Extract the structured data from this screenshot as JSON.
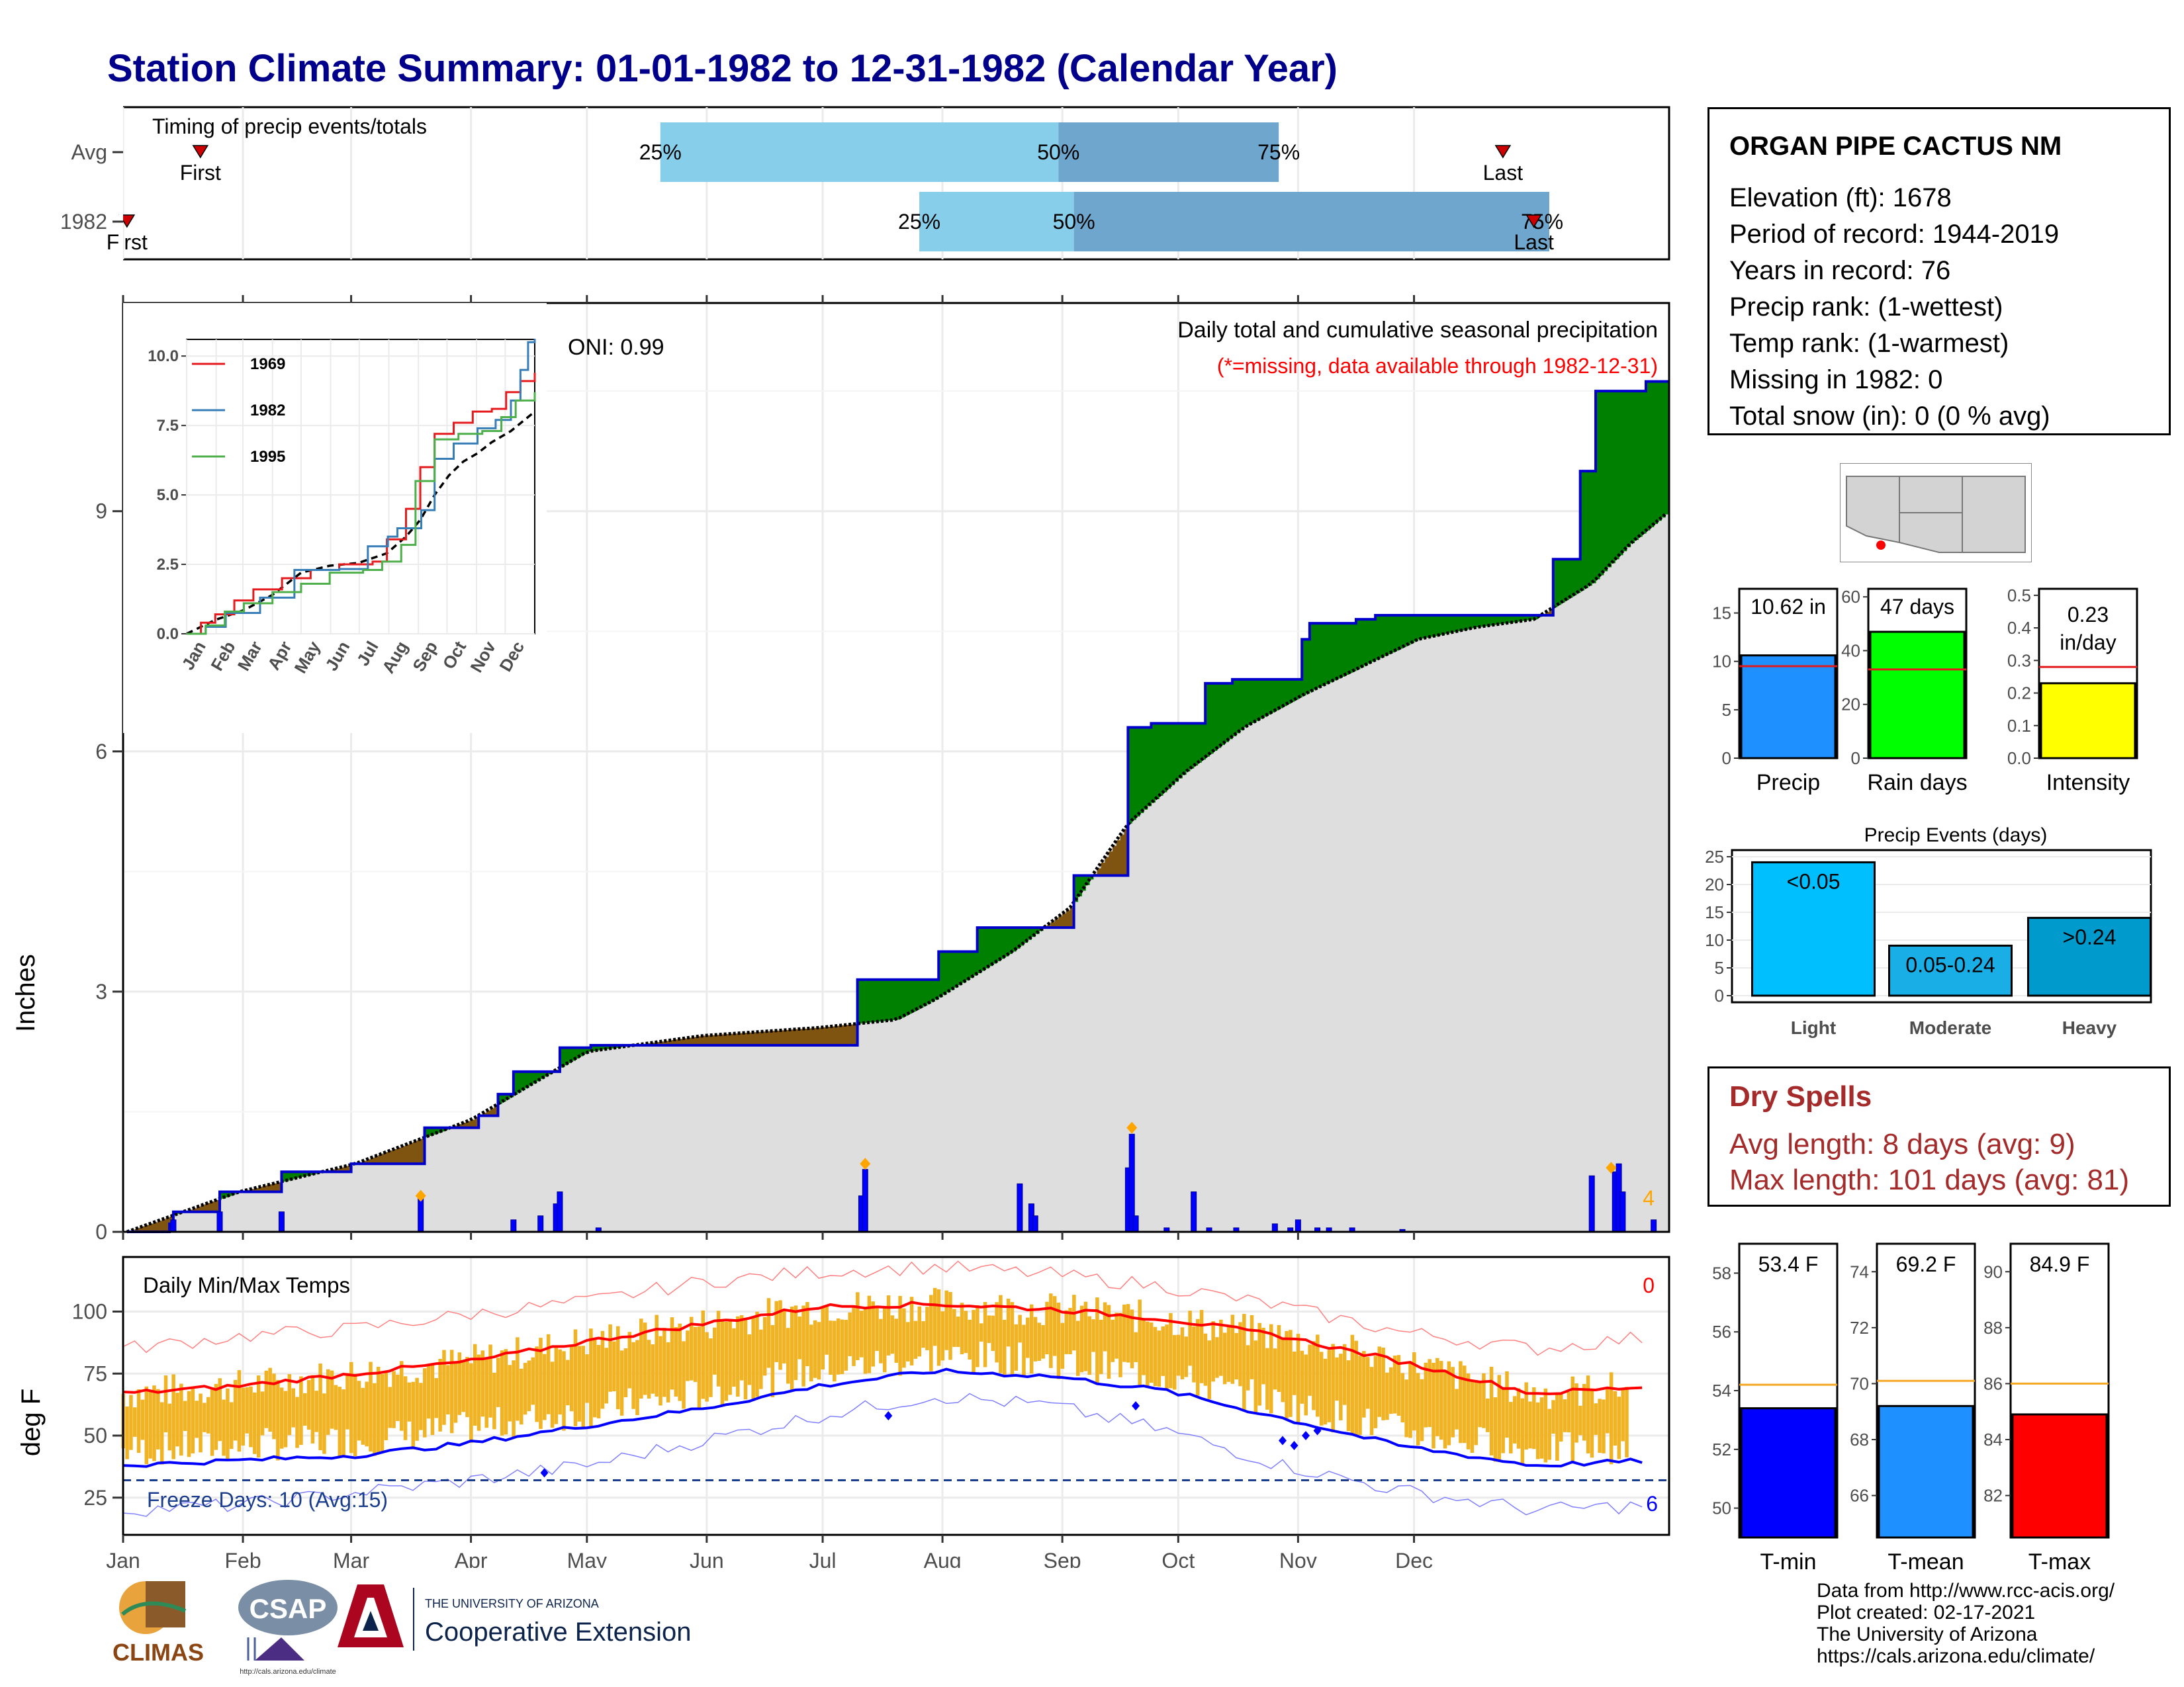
{
  "title": "Station Climate Summary: 01-01-1982 to 12-31-1982 (Calendar Year)",
  "timing": {
    "label": "Timing of precip events/totals",
    "rows": [
      {
        "name": "Avg",
        "first_day": 20,
        "last_day": 357,
        "q25": 139,
        "q50": 242,
        "q75": 299,
        "first_label": "First",
        "last_label": "Last"
      },
      {
        "name": "1982",
        "first_day": 1,
        "last_day": 365,
        "q25": 206,
        "q50": 246,
        "q75": 369,
        "first_label": "First",
        "last_label": "Last"
      }
    ],
    "pct_labels": [
      "25%",
      "50%",
      "75%"
    ]
  },
  "precip": {
    "ylabel": "Inches",
    "oni": "ONI: 0.99",
    "caption": "Daily total and cumulative seasonal precipitation",
    "note": "(*=missing, data available through 1982-12-31)",
    "count_label": "4",
    "yticks": [
      "0",
      "3",
      "6",
      "9"
    ],
    "ylim": [
      0,
      11.6
    ],
    "cumulative_1982": [
      [
        1,
        0
      ],
      [
        12,
        0.1
      ],
      [
        13,
        0.25
      ],
      [
        24,
        0.25
      ],
      [
        25,
        0.5
      ],
      [
        40,
        0.5
      ],
      [
        41,
        0.75
      ],
      [
        58,
        0.75
      ],
      [
        59,
        0.85
      ],
      [
        77,
        0.85
      ],
      [
        78,
        1.3
      ],
      [
        91,
        1.3
      ],
      [
        92,
        1.45
      ],
      [
        96,
        1.45
      ],
      [
        97,
        1.72
      ],
      [
        100,
        1.72
      ],
      [
        101,
        2.0
      ],
      [
        112,
        2.0
      ],
      [
        113,
        2.3
      ],
      [
        120,
        2.3
      ],
      [
        121,
        2.33
      ],
      [
        165,
        2.33
      ],
      [
        166,
        2.33
      ],
      [
        189,
        2.33
      ],
      [
        190,
        3.15
      ],
      [
        210,
        3.15
      ],
      [
        211,
        3.5
      ],
      [
        220,
        3.5
      ],
      [
        221,
        3.8
      ],
      [
        245,
        3.8
      ],
      [
        246,
        4.45
      ],
      [
        259,
        4.45
      ],
      [
        260,
        6.3
      ],
      [
        265,
        6.3
      ],
      [
        266,
        6.35
      ],
      [
        279,
        6.35
      ],
      [
        280,
        6.85
      ],
      [
        286,
        6.85
      ],
      [
        287,
        6.9
      ],
      [
        304,
        6.9
      ],
      [
        305,
        7.4
      ],
      [
        306,
        7.4
      ],
      [
        307,
        7.6
      ],
      [
        318,
        7.6
      ],
      [
        319,
        7.65
      ],
      [
        323,
        7.65
      ],
      [
        324,
        7.7
      ],
      [
        365,
        7.7
      ],
      [
        366,
        7.7
      ],
      [
        369,
        7.7
      ],
      [
        370,
        8.4
      ],
      [
        376,
        8.4
      ],
      [
        377,
        9.5
      ],
      [
        380,
        9.5
      ],
      [
        381,
        10.5
      ],
      [
        393,
        10.5
      ],
      [
        394,
        10.62
      ],
      [
        400,
        10.62
      ]
    ],
    "cumulative_avg": [
      [
        1,
        0
      ],
      [
        30,
        0.5
      ],
      [
        60,
        0.85
      ],
      [
        90,
        1.4
      ],
      [
        120,
        2.25
      ],
      [
        150,
        2.45
      ],
      [
        180,
        2.55
      ],
      [
        200,
        2.65
      ],
      [
        210,
        2.9
      ],
      [
        230,
        3.5
      ],
      [
        245,
        4.05
      ],
      [
        260,
        5.1
      ],
      [
        275,
        5.75
      ],
      [
        290,
        6.3
      ],
      [
        305,
        6.7
      ],
      [
        320,
        7.05
      ],
      [
        335,
        7.4
      ],
      [
        350,
        7.55
      ],
      [
        365,
        7.65
      ],
      [
        380,
        8.1
      ],
      [
        390,
        8.6
      ],
      [
        400,
        9.0
      ]
    ],
    "daily_bars": [
      [
        13,
        0.15
      ],
      [
        25,
        0.25
      ],
      [
        41,
        0.25
      ],
      [
        77,
        0.45
      ],
      [
        101,
        0.15
      ],
      [
        108,
        0.2
      ],
      [
        112,
        0.35
      ],
      [
        113,
        0.5
      ],
      [
        123,
        0.05
      ],
      [
        191,
        0.45
      ],
      [
        192,
        0.78
      ],
      [
        232,
        0.6
      ],
      [
        235,
        0.35
      ],
      [
        236,
        0.2
      ],
      [
        260,
        0.8
      ],
      [
        261,
        1.22
      ],
      [
        262,
        0.2
      ],
      [
        270,
        0.05
      ],
      [
        277,
        0.5
      ],
      [
        281,
        0.05
      ],
      [
        288,
        0.05
      ],
      [
        298,
        0.1
      ],
      [
        302,
        0.05
      ],
      [
        304,
        0.15
      ],
      [
        309,
        0.05
      ],
      [
        312,
        0.05
      ],
      [
        318,
        0.05
      ],
      [
        331,
        0.03
      ],
      [
        380,
        0.7
      ],
      [
        386,
        0.75
      ],
      [
        387,
        0.85
      ],
      [
        388,
        0.5
      ],
      [
        396,
        0.15
      ]
    ],
    "diamonds": [
      [
        77,
        0.45
      ],
      [
        192,
        0.85
      ],
      [
        261,
        1.3
      ],
      [
        385,
        0.8
      ]
    ],
    "inset": {
      "ymax_label": "10.0",
      "yticks": [
        "0.0",
        "2.5",
        "5.0",
        "7.5",
        "10.0"
      ],
      "months": [
        "Jan",
        "Feb",
        "Mar",
        "Apr",
        "May",
        "Jun",
        "Jul",
        "Aug",
        "Sep",
        "Oct",
        "Nov",
        "Dec"
      ],
      "series": [
        {
          "name": "1969",
          "color": "#e41a1c",
          "points": [
            [
              0,
              0
            ],
            [
              15,
              0.4
            ],
            [
              30,
              0.7
            ],
            [
              50,
              1.2
            ],
            [
              70,
              1.6
            ],
            [
              100,
              2.0
            ],
            [
              130,
              2.3
            ],
            [
              160,
              2.5
            ],
            [
              195,
              2.6
            ],
            [
              210,
              3.4
            ],
            [
              230,
              4.5
            ],
            [
              245,
              6.0
            ],
            [
              260,
              7.2
            ],
            [
              280,
              7.6
            ],
            [
              300,
              8.0
            ],
            [
              320,
              8.1
            ],
            [
              335,
              8.7
            ],
            [
              350,
              9.1
            ],
            [
              365,
              9.4
            ]
          ]
        },
        {
          "name": "1982",
          "color": "#377eb8",
          "points": [
            [
              0,
              0
            ],
            [
              20,
              0.25
            ],
            [
              41,
              0.75
            ],
            [
              77,
              1.3
            ],
            [
              113,
              2.3
            ],
            [
              160,
              2.33
            ],
            [
              190,
              3.15
            ],
            [
              211,
              3.5
            ],
            [
              221,
              3.8
            ],
            [
              246,
              4.45
            ],
            [
              260,
              6.3
            ],
            [
              280,
              6.85
            ],
            [
              305,
              7.4
            ],
            [
              324,
              7.7
            ],
            [
              340,
              8.4
            ],
            [
              350,
              9.5
            ],
            [
              358,
              10.5
            ],
            [
              365,
              10.62
            ]
          ]
        },
        {
          "name": "1995",
          "color": "#4daf4a",
          "points": [
            [
              0,
              0
            ],
            [
              20,
              0.3
            ],
            [
              40,
              0.8
            ],
            [
              60,
              1.1
            ],
            [
              90,
              1.5
            ],
            [
              120,
              1.8
            ],
            [
              150,
              2.2
            ],
            [
              185,
              2.3
            ],
            [
              205,
              2.6
            ],
            [
              225,
              3.2
            ],
            [
              240,
              5.5
            ],
            [
              260,
              7.0
            ],
            [
              285,
              7.2
            ],
            [
              310,
              7.3
            ],
            [
              330,
              7.8
            ],
            [
              345,
              8.4
            ],
            [
              365,
              8.7
            ]
          ]
        }
      ],
      "avg_points": [
        [
          0,
          0
        ],
        [
          30,
          0.5
        ],
        [
          60,
          0.85
        ],
        [
          90,
          1.4
        ],
        [
          120,
          2.2
        ],
        [
          150,
          2.45
        ],
        [
          180,
          2.55
        ],
        [
          210,
          2.9
        ],
        [
          230,
          3.5
        ],
        [
          245,
          4.1
        ],
        [
          260,
          5.0
        ],
        [
          275,
          5.7
        ],
        [
          290,
          6.2
        ],
        [
          305,
          6.5
        ],
        [
          320,
          6.9
        ],
        [
          340,
          7.3
        ],
        [
          365,
          8.0
        ]
      ]
    }
  },
  "temps": {
    "ylabel": "deg F",
    "label": "Daily Min/Max Temps",
    "yticks": [
      "25",
      "50",
      "75",
      "100"
    ],
    "ylim": [
      10,
      122
    ],
    "freeze_label": "Freeze Days: 10 (Avg:15)",
    "freeze_line": 32,
    "hot_count": "0",
    "cold_count": "6",
    "avg_max": [
      [
        0,
        67
      ],
      [
        30,
        70
      ],
      [
        60,
        75
      ],
      [
        90,
        80
      ],
      [
        120,
        88
      ],
      [
        150,
        95
      ],
      [
        180,
        102
      ],
      [
        210,
        103
      ],
      [
        240,
        101
      ],
      [
        270,
        97
      ],
      [
        300,
        90
      ],
      [
        330,
        80
      ],
      [
        365,
        67
      ]
    ],
    "avg_min": [
      [
        0,
        38
      ],
      [
        30,
        40
      ],
      [
        60,
        42
      ],
      [
        90,
        47
      ],
      [
        120,
        54
      ],
      [
        150,
        61
      ],
      [
        180,
        70
      ],
      [
        210,
        76
      ],
      [
        240,
        74
      ],
      [
        270,
        68
      ],
      [
        300,
        57
      ],
      [
        330,
        46
      ],
      [
        365,
        38
      ]
    ],
    "record_max": [
      [
        0,
        85
      ],
      [
        30,
        90
      ],
      [
        60,
        93
      ],
      [
        90,
        99
      ],
      [
        120,
        104
      ],
      [
        150,
        112
      ],
      [
        180,
        116
      ],
      [
        210,
        118
      ],
      [
        240,
        115
      ],
      [
        270,
        110
      ],
      [
        300,
        102
      ],
      [
        330,
        92
      ],
      [
        365,
        85
      ]
    ],
    "record_min": [
      [
        0,
        20
      ],
      [
        30,
        22
      ],
      [
        60,
        27
      ],
      [
        90,
        32
      ],
      [
        120,
        38
      ],
      [
        150,
        48
      ],
      [
        180,
        58
      ],
      [
        210,
        66
      ],
      [
        240,
        62
      ],
      [
        270,
        52
      ],
      [
        300,
        38
      ],
      [
        330,
        28
      ],
      [
        365,
        20
      ]
    ]
  },
  "xmonths": [
    "Jan",
    "Feb",
    "Mar",
    "Apr",
    "May",
    "Jun",
    "Jul",
    "Aug",
    "Sep",
    "Oct",
    "Nov",
    "Dec"
  ],
  "station": {
    "name": "ORGAN PIPE CACTUS NM",
    "elevation": "Elevation (ft): 1678",
    "period": "Period of record: 1944-2019",
    "years": "Years in record: 76",
    "precip_rank": "Precip rank:  (1-wettest)",
    "temp_rank": "Temp rank:  (1-warmest)",
    "missing": "Missing in 1982: 0",
    "snow": "Total snow (in): 0 (0 % avg)"
  },
  "stat_bars": [
    {
      "name": "Precip",
      "value": 10.62,
      "label": "10.62 in",
      "avg": 9.5,
      "ymax": 17.5,
      "ticks": [
        "0",
        "5",
        "10",
        "15"
      ],
      "tickvals": [
        0,
        5,
        10,
        15
      ],
      "color": "#1e90ff"
    },
    {
      "name": "Rain days",
      "value": 47,
      "label": "47 days",
      "avg": 33,
      "ymax": 63,
      "ticks": [
        "0",
        "20",
        "40",
        "60"
      ],
      "tickvals": [
        0,
        20,
        40,
        60
      ],
      "color": "#00ff00"
    },
    {
      "name": "Intensity",
      "value": 0.23,
      "label": "0.23 in/day",
      "avg": 0.28,
      "ymax": 0.52,
      "ticks": [
        "0.0",
        "0.1",
        "0.2",
        "0.3",
        "0.4",
        "0.5"
      ],
      "tickvals": [
        0,
        0.1,
        0.2,
        0.3,
        0.4,
        0.5
      ],
      "color": "#ffff00"
    }
  ],
  "events": {
    "title": "Precip Events (days)",
    "yticks": [
      "0",
      "5",
      "10",
      "15",
      "20",
      "25"
    ],
    "bars": [
      {
        "name": "Light",
        "value": 24,
        "label": "<0.05",
        "color": "#00bfff"
      },
      {
        "name": "Moderate",
        "value": 9,
        "label": "0.05-0.24",
        "color": "#1aaee6"
      },
      {
        "name": "Heavy",
        "value": 14,
        "label": ">0.24",
        "color": "#009acd"
      }
    ]
  },
  "dry_spells": {
    "title": "Dry Spells",
    "avg_length": "Avg length: 8 days (avg: 9)",
    "max_length": "Max length: 101 days (avg: 81)"
  },
  "temp_bars": [
    {
      "name": "T-min",
      "value": 53.4,
      "label": "53.4 F",
      "avg": 54.2,
      "ymin": 49,
      "ymax": 59,
      "ticks": [
        "50",
        "52",
        "54",
        "56",
        "58"
      ],
      "tickvals": [
        50,
        52,
        54,
        56,
        58
      ],
      "color": "#0000ff"
    },
    {
      "name": "T-mean",
      "value": 69.2,
      "label": "69.2 F",
      "avg": 70.1,
      "ymin": 64.5,
      "ymax": 75,
      "ticks": [
        "66",
        "68",
        "70",
        "72",
        "74"
      ],
      "tickvals": [
        66,
        68,
        70,
        72,
        74
      ],
      "color": "#1e90ff"
    },
    {
      "name": "T-max",
      "value": 84.9,
      "label": "84.9 F",
      "avg": 86.0,
      "ymin": 80.5,
      "ymax": 91,
      "ticks": [
        "82",
        "84",
        "86",
        "88",
        "90"
      ],
      "tickvals": [
        82,
        84,
        86,
        88,
        90
      ],
      "color": "#ff0000"
    }
  ],
  "credits": [
    "Data from http://www.rcc-acis.org/",
    "Plot created: 02-17-2021",
    "The University of Arizona",
    "https://cals.arizona.edu/climate/"
  ],
  "logos": {
    "climas": "CLIMAS",
    "csap": "CSAP",
    "csap_url": "http://cals.arizona.edu/climate",
    "ua_line1": "THE UNIVERSITY OF ARIZONA",
    "ua_line2": "Cooperative Extension"
  }
}
